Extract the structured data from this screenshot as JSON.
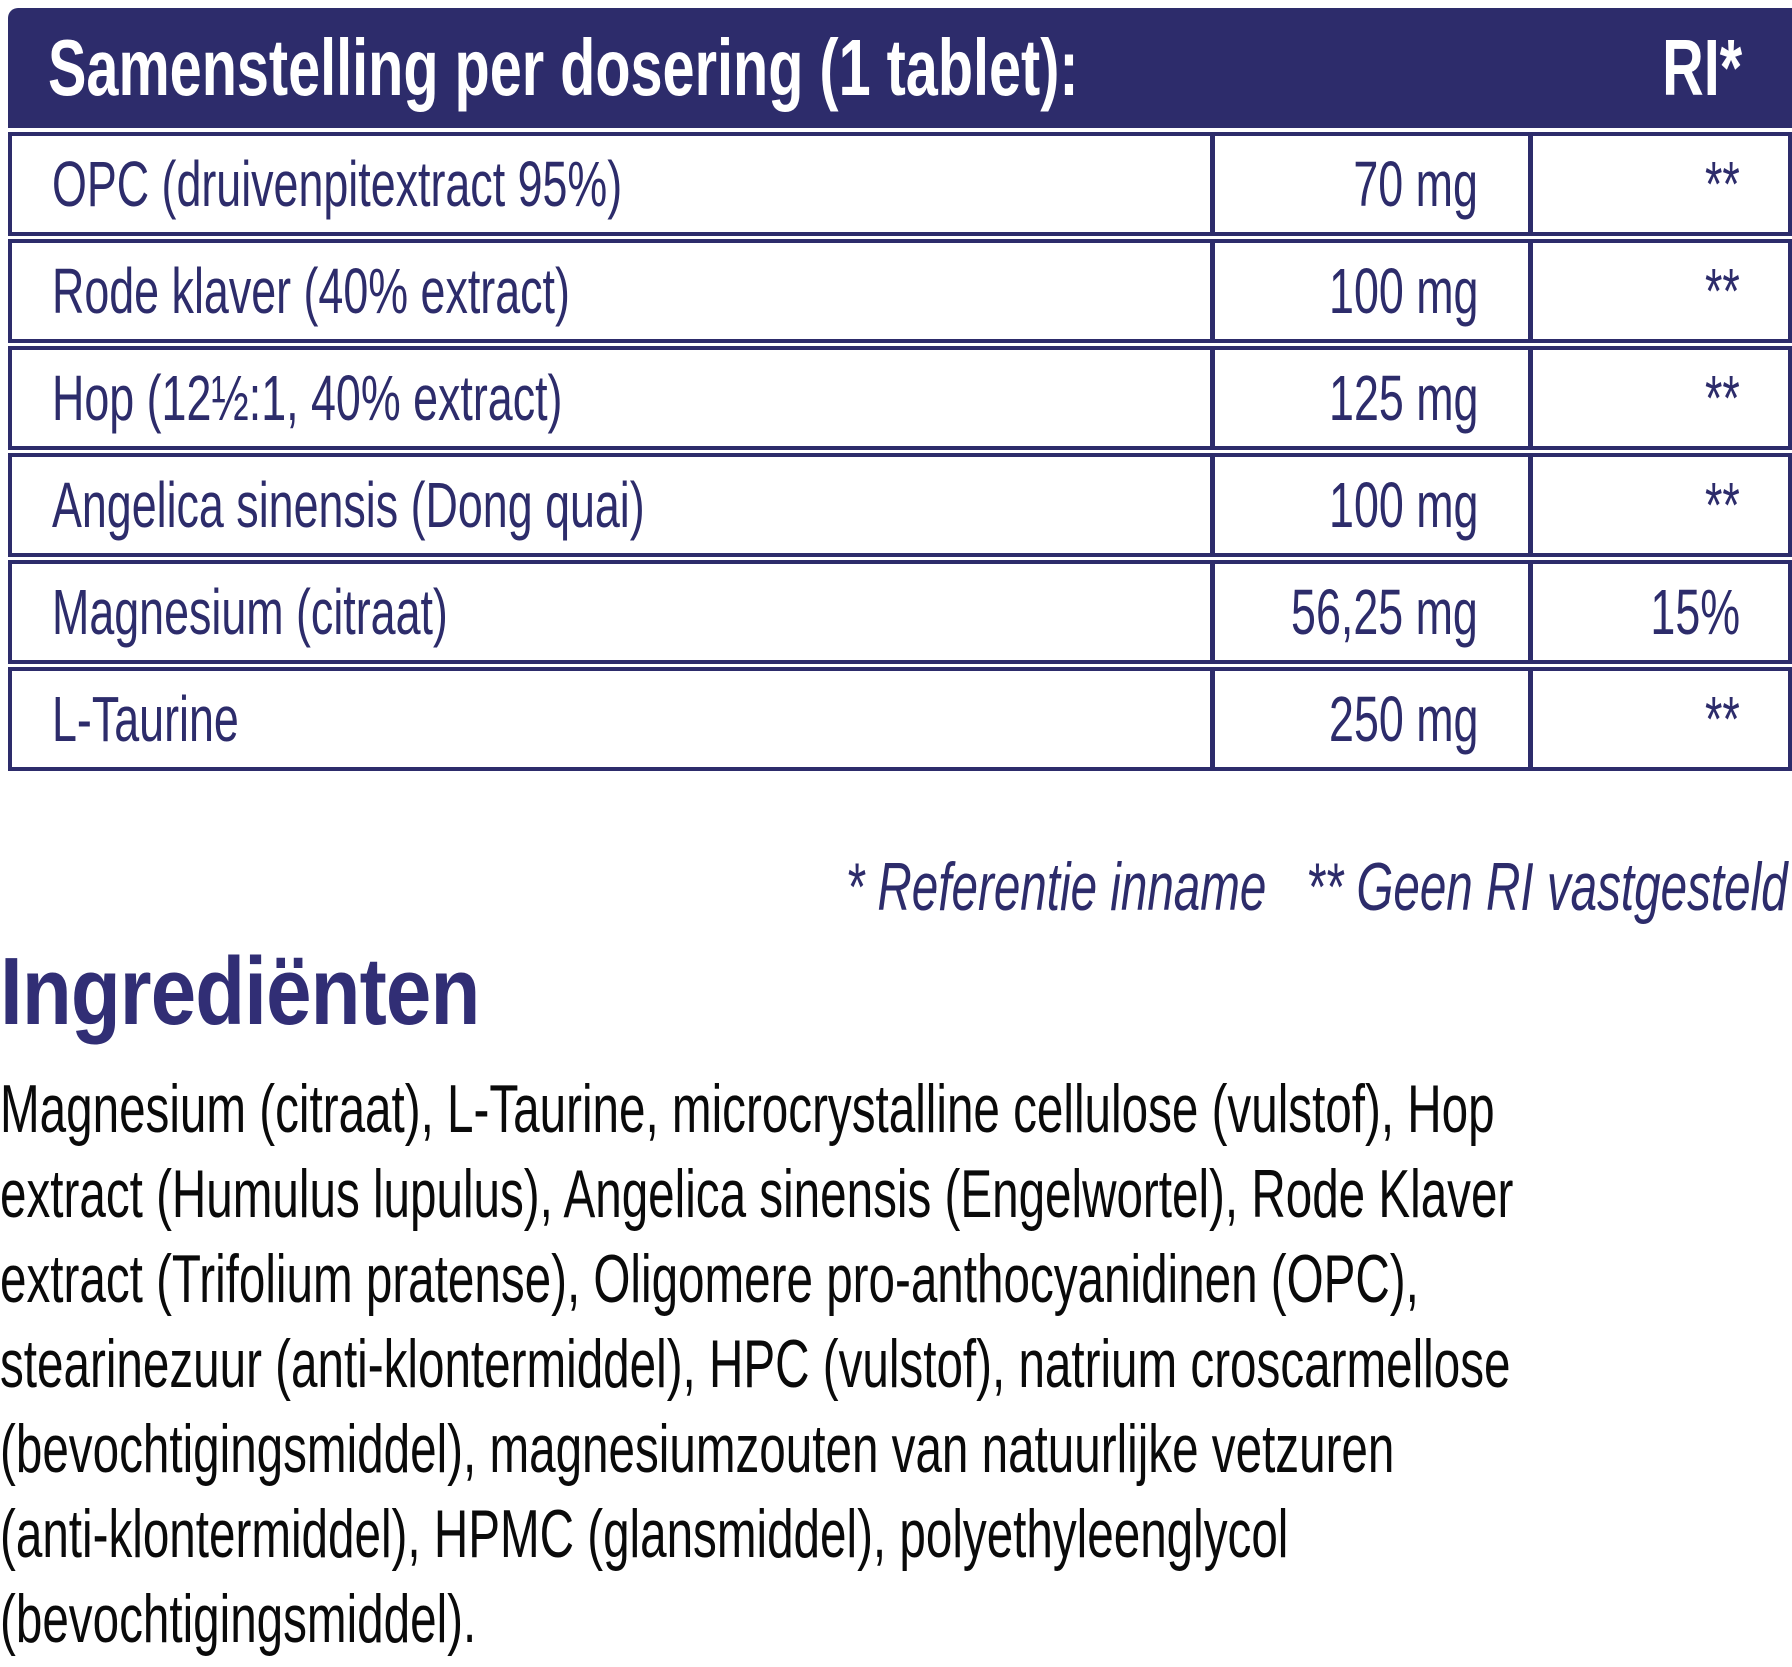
{
  "colors": {
    "navy": "#2d2c6b",
    "heading_indigo": "#312e75",
    "paragraph_black": "#0a0a0a",
    "header_text_white": "#ffffff"
  },
  "table": {
    "header": {
      "title": "Samenstelling per dosering (1 tablet):",
      "ri_label": "RI*"
    },
    "rows": [
      {
        "name": "OPC (druivenpitextract 95%)",
        "amount": "70 mg",
        "ri": "**"
      },
      {
        "name": "Rode klaver (40% extract)",
        "amount": "100 mg",
        "ri": "**"
      },
      {
        "name": "Hop (12½:1, 40% extract)",
        "amount": "125 mg",
        "ri": "**"
      },
      {
        "name": "Angelica sinensis (Dong quai)",
        "amount": "100 mg",
        "ri": "**"
      },
      {
        "name": "Magnesium (citraat)",
        "amount": "56,25 mg",
        "ri": "15%"
      },
      {
        "name": "L-Taurine",
        "amount": "250 mg",
        "ri": "**"
      }
    ],
    "footnote": "* Referentie inname   ** Geen RI vastgesteld"
  },
  "ingredients": {
    "heading": "Ingrediënten",
    "lines": [
      "Magnesium (citraat), L-Taurine, microcrystalline cellulose (vulstof), Hop",
      "extract (Humulus lupulus), Angelica sinensis (Engelwortel), Rode Klaver",
      "extract (Trifolium pratense), Oligomere pro-anthocyanidinen (OPC),",
      "stearinezuur (anti-klontermiddel), HPC (vulstof), natrium croscarmellose",
      "(bevochtigingsmiddel), magnesiumzouten van natuurlijke vetzuren",
      "(anti-klontermiddel), HPMC (glansmiddel), polyethyleenglycol",
      "(bevochtigingsmiddel)."
    ]
  }
}
